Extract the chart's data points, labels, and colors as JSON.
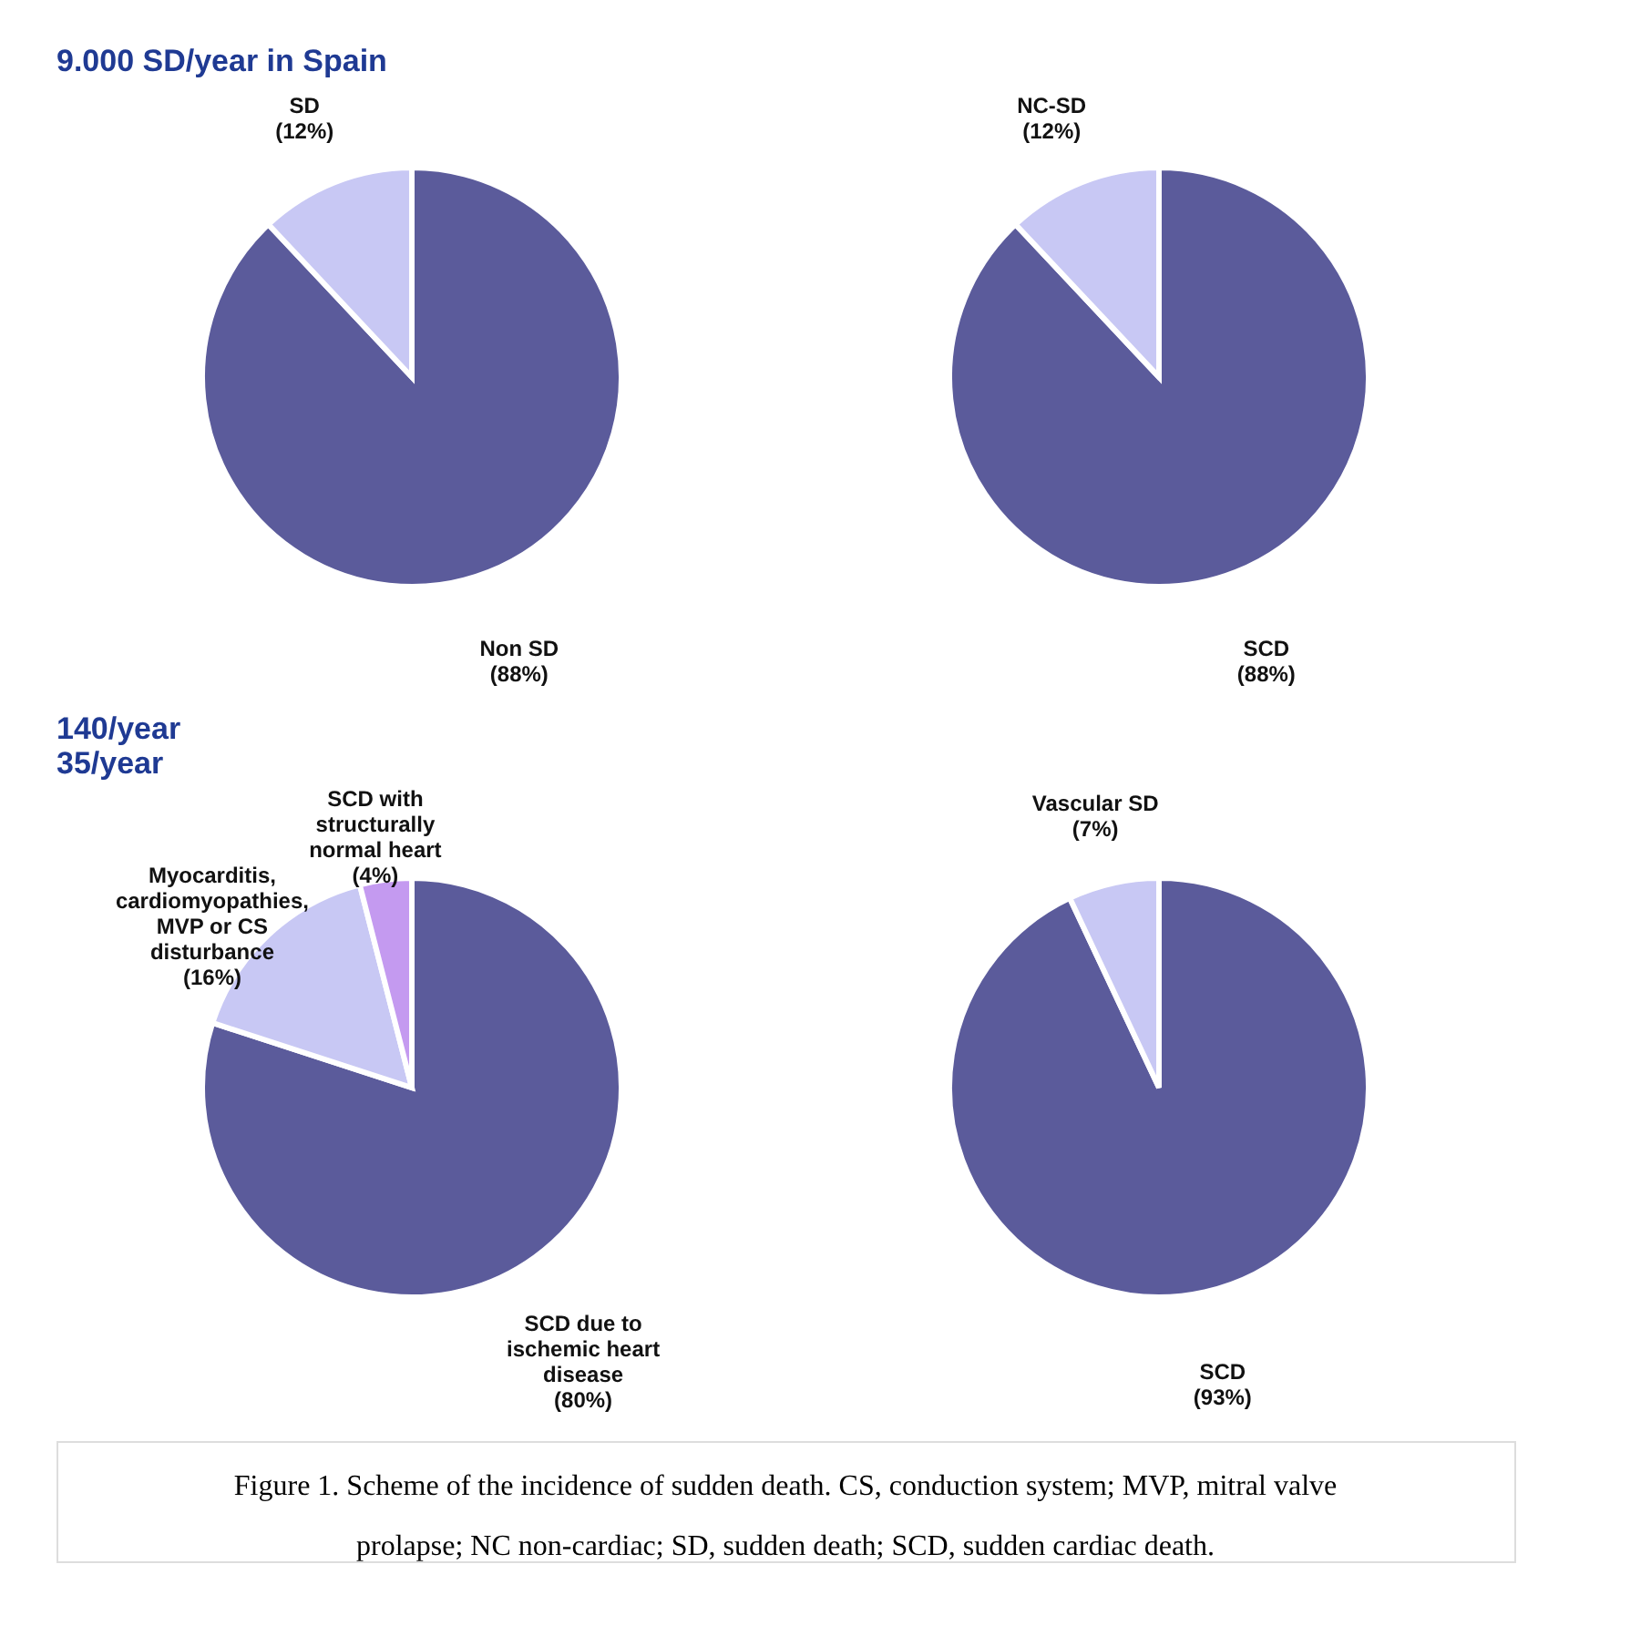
{
  "chart_data": [
    {
      "type": "pie",
      "categories": [
        "Non SD",
        "SD"
      ],
      "values": [
        88,
        12
      ],
      "value_labels": [
        "(88%)",
        "(12%)"
      ],
      "colors": [
        "#5b5b9b",
        "#c8c8f4"
      ],
      "annotations": [
        "9.000 SD/year in Spain"
      ]
    },
    {
      "type": "pie",
      "categories": [
        "SCD",
        "NC-SD"
      ],
      "values": [
        88,
        12
      ],
      "value_labels": [
        "(88%)",
        "(12%)"
      ],
      "colors": [
        "#5b5b9b",
        "#c8c8f4"
      ]
    },
    {
      "type": "pie",
      "categories": [
        "SCD due to ischemic heart disease",
        "Myocarditis, cardiomyopathies, MVP or CS disturbance",
        "SCD with structurally normal heart"
      ],
      "values": [
        80,
        16,
        4
      ],
      "value_labels": [
        "(80%)",
        "(16%)",
        "(4%)"
      ],
      "colors": [
        "#5b5b9b",
        "#c8c8f4",
        "#c49af0"
      ],
      "annotations": [
        "140/year",
        "35/year"
      ]
    },
    {
      "type": "pie",
      "categories": [
        "SCD",
        "Vascular SD"
      ],
      "values": [
        93,
        7
      ],
      "value_labels": [
        "(93%)",
        "(7%)"
      ],
      "colors": [
        "#5b5b9b",
        "#c8c8f4"
      ],
      "annotations": [
        "Figure 1. Scheme of the incidence of sudden death. CS, conduction system; MVP, mitral valve prolapse; NC non-cardiac; SD, sudden death; SCD, sudden cardiac death."
      ]
    }
  ]
}
